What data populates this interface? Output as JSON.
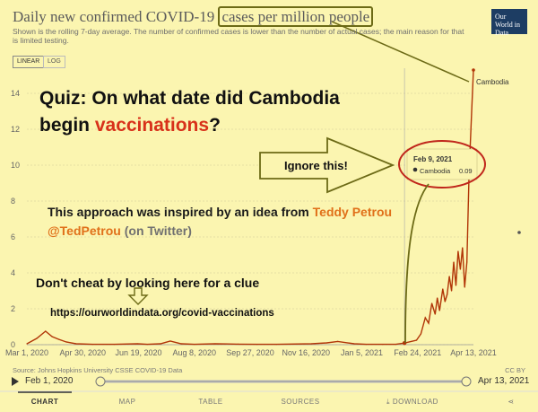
{
  "header": {
    "title_prefix": "Daily new confirmed COVID-19 ",
    "title_highlight": "cases per million people",
    "subtitle": "Shown is the rolling 7-day average. The number of confirmed cases is lower than the number of actual cases; the main reason for that is limited testing.",
    "logo": "Our World in Data"
  },
  "scale_toggle": {
    "linear": "LINEAR",
    "log": "LOG"
  },
  "annotations": {
    "quiz_line1": "Quiz: On what date did Cambodia",
    "quiz_begin": "begin ",
    "quiz_vacc": "vaccinations",
    "quiz_q": "?",
    "ignore": "Ignore this!",
    "inspired_line1_a": "This approach was inspired by an idea from ",
    "inspired_name": "Teddy Petrou",
    "inspired_handle": "@TedPetrou",
    "inspired_twitter": " (on Twitter)",
    "cheat": "Don't cheat by looking here for a clue",
    "url": "https://ourworldindata.org/covid-vaccinations"
  },
  "tooltip": {
    "date": "Feb 9, 2021",
    "country": "Cambodia",
    "value": "0.09"
  },
  "footer": {
    "source": "Source: Johns Hopkins University CSSE COVID-19 Data",
    "license": "CC BY",
    "slider_start": "Feb 1, 2020",
    "slider_end": "Apr 13, 2021",
    "tabs": [
      "CHART",
      "MAP",
      "TABLE",
      "SOURCES",
      "DOWNLOAD"
    ]
  },
  "colors": {
    "series": "#b13507",
    "annotation_olive": "#6c6a16",
    "circle_red": "#c0261b",
    "arrow_fill": "#fbf5b0"
  },
  "chart_data": {
    "type": "line",
    "title": "Daily new confirmed COVID-19 cases per million people",
    "xlabel": "",
    "ylabel": "",
    "ylim": [
      0,
      15
    ],
    "yticks": [
      0,
      2,
      4,
      6,
      8,
      10,
      12,
      14
    ],
    "xticks": [
      "Mar 1, 2020",
      "Apr 30, 2020",
      "Jun 19, 2020",
      "Aug 8, 2020",
      "Sep 27, 2020",
      "Nov 16, 2020",
      "Jan 5, 2021",
      "Feb 24, 2021",
      "Apr 13, 2021"
    ],
    "grid": true,
    "series": [
      {
        "name": "Cambodia",
        "x": [
          "2020-02-01",
          "2020-03-01",
          "2020-03-10",
          "2020-03-18",
          "2020-03-24",
          "2020-03-30",
          "2020-04-06",
          "2020-04-15",
          "2020-04-30",
          "2020-05-20",
          "2020-06-10",
          "2020-06-19",
          "2020-07-01",
          "2020-07-10",
          "2020-07-20",
          "2020-08-01",
          "2020-08-20",
          "2020-09-10",
          "2020-09-27",
          "2020-10-15",
          "2020-11-16",
          "2020-11-30",
          "2020-12-10",
          "2020-12-25",
          "2021-01-05",
          "2021-01-20",
          "2021-02-01",
          "2021-02-09",
          "2021-02-20",
          "2021-02-24",
          "2021-02-28",
          "2021-03-03",
          "2021-03-06",
          "2021-03-09",
          "2021-03-11",
          "2021-03-13",
          "2021-03-16",
          "2021-03-18",
          "2021-03-20",
          "2021-03-22",
          "2021-03-24",
          "2021-03-26",
          "2021-03-28",
          "2021-03-30",
          "2021-04-01",
          "2021-04-03",
          "2021-04-05",
          "2021-04-07",
          "2021-04-09",
          "2021-04-11",
          "2021-04-13"
        ],
        "values": [
          0,
          0.05,
          0.35,
          0.75,
          0.45,
          0.3,
          0.15,
          0.05,
          0.02,
          0.02,
          0.05,
          0.02,
          0.05,
          0.2,
          0.05,
          0.02,
          0.05,
          0.03,
          0.02,
          0.02,
          0.05,
          0.1,
          0.18,
          0.05,
          0.02,
          0.02,
          0.02,
          0.09,
          0.25,
          0.6,
          1.5,
          1.2,
          2.3,
          1.7,
          2.6,
          1.9,
          3.1,
          2.4,
          2.8,
          3.8,
          3.0,
          4.6,
          3.3,
          5.2,
          4.2,
          5.4,
          3.2,
          4.6,
          9.5,
          12.5,
          15.3
        ]
      }
    ]
  }
}
